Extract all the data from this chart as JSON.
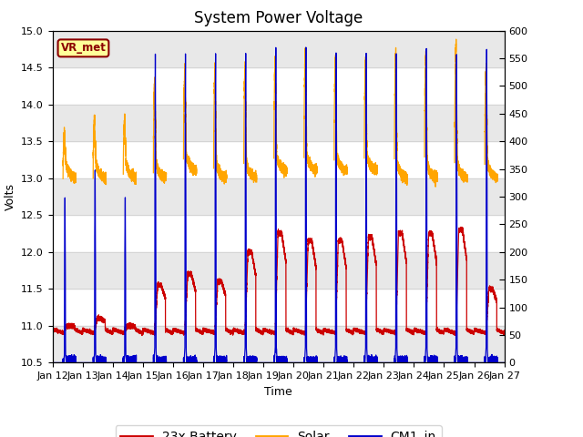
{
  "title": "System Power Voltage",
  "xlabel": "Time",
  "ylabel": "Volts",
  "ylim": [
    10.5,
    15.0
  ],
  "ylim2": [
    0,
    600
  ],
  "yticks_left": [
    10.5,
    11.0,
    11.5,
    12.0,
    12.5,
    13.0,
    13.5,
    14.0,
    14.5,
    15.0
  ],
  "yticks2": [
    0,
    50,
    100,
    150,
    200,
    250,
    300,
    350,
    400,
    450,
    500,
    550,
    600
  ],
  "x_tick_labels": [
    "Jan 12",
    "Jan 13",
    "Jan 14",
    "Jan 15",
    "Jan 16",
    "Jan 17",
    "Jan 18",
    "Jan 19",
    "Jan 20",
    "Jan 21",
    "Jan 22",
    "Jan 23",
    "Jan 24",
    "Jan 25",
    "Jan 26",
    "Jan 27"
  ],
  "battery_color": "#cc0000",
  "solar_color": "#ffa500",
  "cm1_color": "#0000cc",
  "legend_label_battery": "23x Battery",
  "legend_label_solar": "Solar",
  "legend_label_cm1": "CM1_in",
  "annotation_text": "VR_met",
  "annotation_fg": "#8b0000",
  "annotation_bg": "#ffff99",
  "bg_band_color": "#e8e8e8",
  "title_fontsize": 12,
  "label_fontsize": 9,
  "tick_fontsize": 8,
  "linewidth": 0.9,
  "days": 15,
  "n_per_day": 1440
}
